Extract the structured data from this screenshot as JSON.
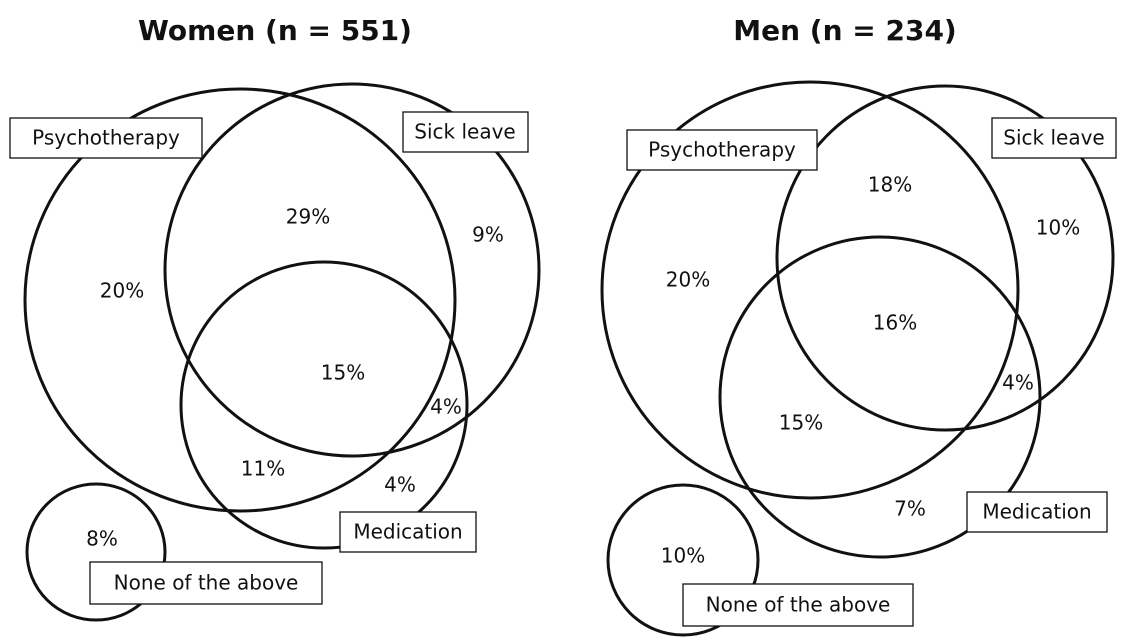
{
  "panels": [
    {
      "title": "Women (n = 551)",
      "sets": [
        "Psychotherapy",
        "Sick leave",
        "Medication",
        "None of the above"
      ],
      "regions": [
        "20%",
        "29%",
        "9%",
        "15%",
        "4%",
        "11%",
        "4%",
        "8%"
      ]
    },
    {
      "title": "Men (n = 234)",
      "sets": [
        "Psychotherapy",
        "Sick leave",
        "Medication",
        "None of the above"
      ],
      "regions": [
        "18%",
        "10%",
        "20%",
        "16%",
        "4%",
        "15%",
        "7%",
        "10%"
      ]
    }
  ]
}
